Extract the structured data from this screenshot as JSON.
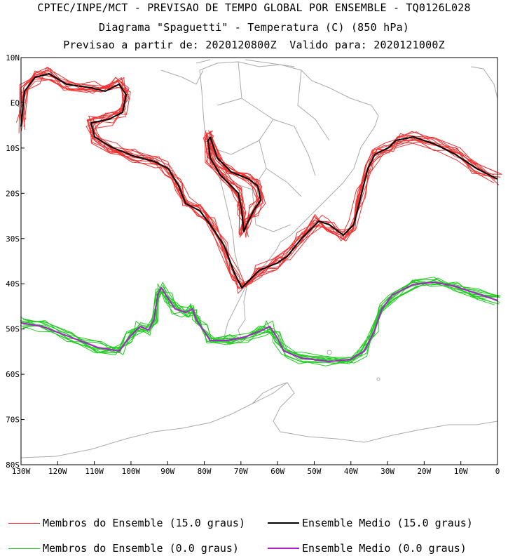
{
  "header": {
    "line1": "CPTEC/INPE/MCT - PREVISAO DE TEMPO GLOBAL POR ENSEMBLE - TQ0126L028",
    "line2": "Diagrama \"Spaguetti\" - Temperatura (C) (850 hPa)",
    "line3": "Previsao a partir de: 2020120800Z  Valido para: 2020121000Z"
  },
  "axes": {
    "lat_labels": [
      "10N",
      "EQ",
      "10S",
      "20S",
      "30S",
      "40S",
      "50S",
      "60S",
      "70S",
      "80S"
    ],
    "lon_labels": [
      "130W",
      "120W",
      "110W",
      "100W",
      "90W",
      "80W",
      "70W",
      "60W",
      "50W",
      "40W",
      "30W",
      "20W",
      "10W",
      "0"
    ]
  },
  "legend": {
    "members_15": "Membros do Ensemble (15.0 graus)",
    "mean_15": "Ensemble Medio (15.0 graus)",
    "members_0": "Membros do Ensemble (0.0 graus)",
    "mean_0": "Ensemble Medio (0.0 graus)"
  },
  "colors": {
    "members_15": "#ee3333",
    "mean_15": "#000000",
    "members_0": "#22cc22",
    "mean_0": "#aa22cc",
    "coast": "#aaaaaa"
  }
}
